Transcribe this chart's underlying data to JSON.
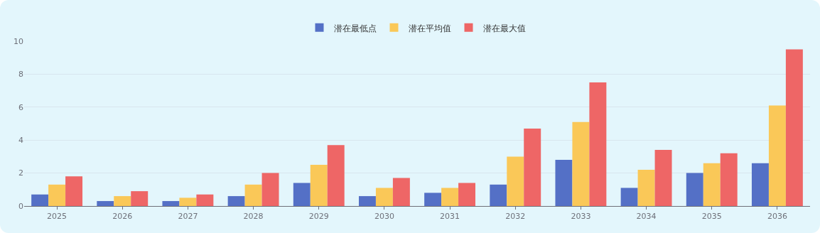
{
  "chart_data": {
    "type": "bar",
    "categories": [
      "2025",
      "2026",
      "2027",
      "2028",
      "2029",
      "2030",
      "2031",
      "2032",
      "2033",
      "2034",
      "2035",
      "2036"
    ],
    "series": [
      {
        "name": "潜在最低点",
        "color": "#5470c6",
        "values": [
          0.7,
          0.3,
          0.3,
          0.6,
          1.4,
          0.6,
          0.8,
          1.3,
          2.8,
          1.1,
          2.0,
          2.6
        ]
      },
      {
        "name": "潜在平均值",
        "color": "#fac858",
        "values": [
          1.3,
          0.6,
          0.5,
          1.3,
          2.5,
          1.1,
          1.1,
          3.0,
          5.1,
          2.2,
          2.6,
          6.1
        ]
      },
      {
        "name": "潜在最大值",
        "color": "#ee6666",
        "values": [
          1.8,
          0.9,
          0.7,
          2.0,
          3.7,
          1.7,
          1.4,
          4.7,
          7.5,
          3.4,
          3.2,
          9.5
        ]
      }
    ],
    "ylim": [
      0,
      10
    ],
    "yticks": [
      0,
      2,
      4,
      6,
      8,
      10
    ],
    "grid": "y",
    "legend": "top"
  }
}
